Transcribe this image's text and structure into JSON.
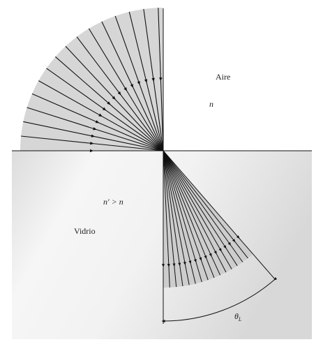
{
  "diagram": {
    "upper_medium": {
      "name": "Aire",
      "index": "n"
    },
    "lower_medium": {
      "name": "Vidrio",
      "index": "n′ > n"
    },
    "angle_label": "θ",
    "angle_subscript": "L",
    "ray_count": 16,
    "colors": {
      "upper_fan": "#d6d6d6",
      "lower_fan": "#cdcdcd",
      "glass_light": "#f3f3f3",
      "glass_dark": "#d9d9d9",
      "rays": "#111111"
    }
  }
}
